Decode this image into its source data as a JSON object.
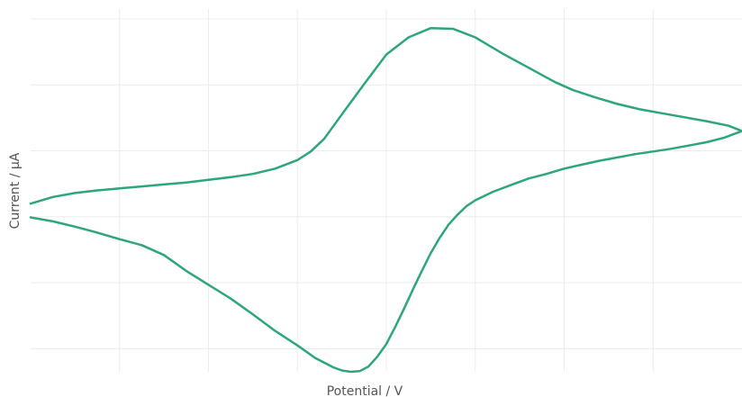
{
  "chart_data": {
    "type": "line",
    "title": "",
    "xlabel": "Potential / V",
    "ylabel": "Current / µA",
    "xlim": [
      -0.4,
      0.4
    ],
    "ylim": [
      -3.35,
      2.15
    ],
    "grid": true,
    "legend": "none",
    "tick_labels_visible": false,
    "x_gridlines": [
      -0.3,
      -0.2,
      -0.1,
      0.0,
      0.1,
      0.2,
      0.3
    ],
    "y_gridlines": [
      -3.0,
      -2.0,
      -1.0,
      0.0,
      1.0,
      2.0
    ],
    "colors": {
      "series": "#2ca67a",
      "grid": "#ececec",
      "axis_text": "#555555"
    },
    "series": [
      {
        "x": [
          -0.4,
          -0.375,
          -0.35,
          -0.325,
          -0.3,
          -0.275,
          -0.25,
          -0.225,
          -0.2,
          -0.175,
          -0.15,
          -0.125,
          -0.1,
          -0.085,
          -0.07,
          -0.05,
          -0.025,
          0.0,
          0.025,
          0.05,
          0.075,
          0.1,
          0.115,
          0.13,
          0.145,
          0.16,
          0.175,
          0.19,
          0.21,
          0.235,
          0.26,
          0.285,
          0.31,
          0.335,
          0.36,
          0.385,
          0.4
        ],
        "y": [
          -0.8,
          -0.7,
          -0.64,
          -0.6,
          -0.57,
          -0.54,
          -0.51,
          -0.48,
          -0.44,
          -0.4,
          -0.35,
          -0.27,
          -0.14,
          -0.01,
          0.18,
          0.55,
          1.01,
          1.46,
          1.72,
          1.86,
          1.85,
          1.72,
          1.6,
          1.48,
          1.37,
          1.26,
          1.15,
          1.04,
          0.92,
          0.81,
          0.71,
          0.63,
          0.57,
          0.51,
          0.45,
          0.38,
          0.3
        ]
      },
      {
        "x": [
          0.4,
          0.38,
          0.36,
          0.34,
          0.32,
          0.3,
          0.28,
          0.26,
          0.24,
          0.22,
          0.2,
          0.18,
          0.16,
          0.14,
          0.12,
          0.1,
          0.09,
          0.08,
          0.07,
          0.06,
          0.05,
          0.04,
          0.03,
          0.02,
          0.01,
          0.0,
          -0.01,
          -0.02,
          -0.03,
          -0.04,
          -0.05,
          -0.06,
          -0.08,
          -0.1,
          -0.125,
          -0.15,
          -0.175,
          -0.2,
          -0.225,
          -0.25,
          -0.275,
          -0.3,
          -0.325,
          -0.35,
          -0.375,
          -0.4
        ],
        "y": [
          0.3,
          0.2,
          0.13,
          0.08,
          0.03,
          -0.01,
          -0.05,
          -0.1,
          -0.15,
          -0.21,
          -0.27,
          -0.35,
          -0.42,
          -0.52,
          -0.62,
          -0.75,
          -0.84,
          -0.97,
          -1.12,
          -1.32,
          -1.55,
          -1.82,
          -2.1,
          -2.39,
          -2.67,
          -2.93,
          -3.12,
          -3.27,
          -3.34,
          -3.35,
          -3.33,
          -3.28,
          -3.14,
          -2.95,
          -2.73,
          -2.48,
          -2.24,
          -2.03,
          -1.82,
          -1.58,
          -1.43,
          -1.34,
          -1.24,
          -1.15,
          -1.07,
          -1.01
        ]
      }
    ]
  }
}
